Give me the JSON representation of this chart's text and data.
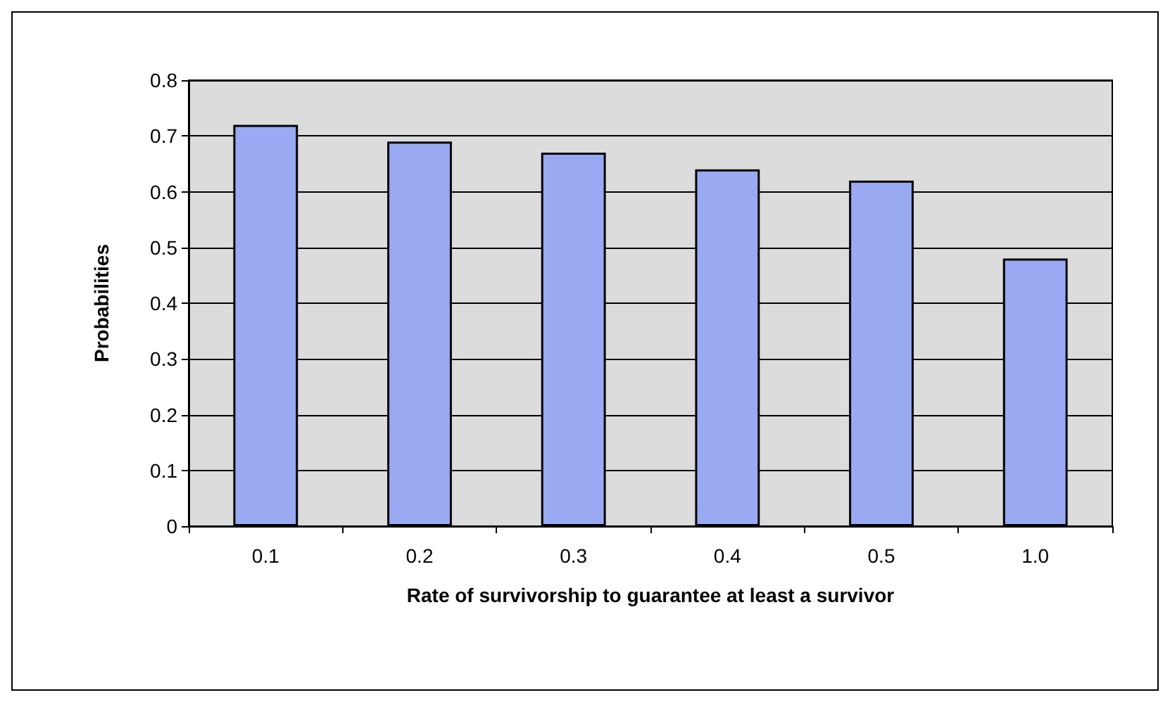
{
  "chart_data": {
    "type": "bar",
    "xlabel": "Rate of survivorship to guarantee at least a survivor",
    "ylabel": "Probabilities",
    "categories": [
      "0.1",
      "0.2",
      "0.3",
      "0.4",
      "0.5",
      "1.0"
    ],
    "values": [
      0.72,
      0.69,
      0.67,
      0.64,
      0.62,
      0.48
    ],
    "color": "#99aaf2",
    "ylim": [
      0,
      0.8
    ],
    "yticks": [
      0,
      0.1,
      0.2,
      0.3,
      0.4,
      0.5,
      0.6,
      0.7,
      0.8
    ],
    "grid": "y"
  }
}
